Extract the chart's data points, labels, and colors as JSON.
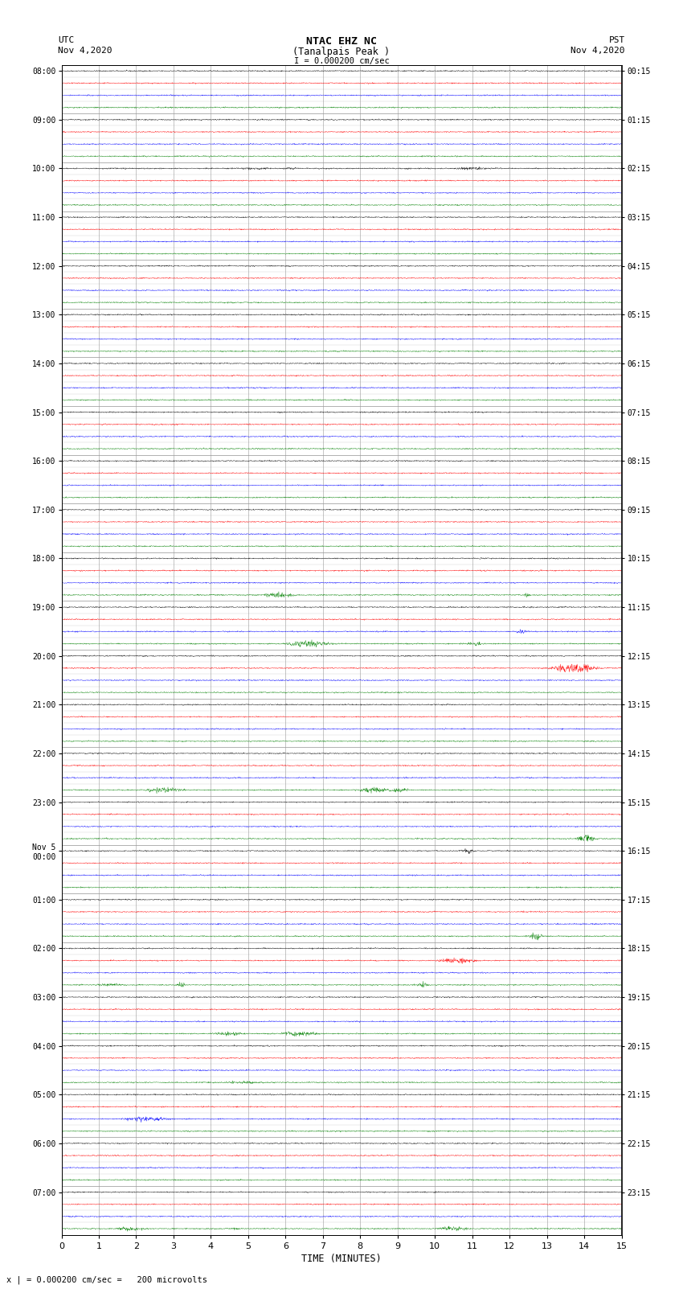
{
  "title_line1": "NTAC EHZ NC",
  "title_line2": "(Tanalpais Peak )",
  "title_line3": "I = 0.000200 cm/sec",
  "left_label_top": "UTC",
  "left_label_date": "Nov 4,2020",
  "right_label_top": "PST",
  "right_label_date": "Nov 4,2020",
  "xlabel": "TIME (MINUTES)",
  "footer": "x | = 0.000200 cm/sec =   200 microvolts",
  "utc_times": [
    "08:00",
    "09:00",
    "10:00",
    "11:00",
    "12:00",
    "13:00",
    "14:00",
    "15:00",
    "16:00",
    "17:00",
    "18:00",
    "19:00",
    "20:00",
    "21:00",
    "22:00",
    "23:00",
    "Nov 5\n00:00",
    "01:00",
    "02:00",
    "03:00",
    "04:00",
    "05:00",
    "06:00",
    "07:00"
  ],
  "pst_times": [
    "00:15",
    "01:15",
    "02:15",
    "03:15",
    "04:15",
    "05:15",
    "06:15",
    "07:15",
    "08:15",
    "09:15",
    "10:15",
    "11:15",
    "12:15",
    "13:15",
    "14:15",
    "15:15",
    "16:15",
    "17:15",
    "18:15",
    "19:15",
    "20:15",
    "21:15",
    "22:15",
    "23:15"
  ],
  "colors": [
    "black",
    "red",
    "blue",
    "green"
  ],
  "n_hours": 24,
  "traces_per_hour": 4,
  "xlim": [
    0,
    15
  ],
  "bg_color": "white",
  "grid_color": "#999999",
  "seed": 42
}
